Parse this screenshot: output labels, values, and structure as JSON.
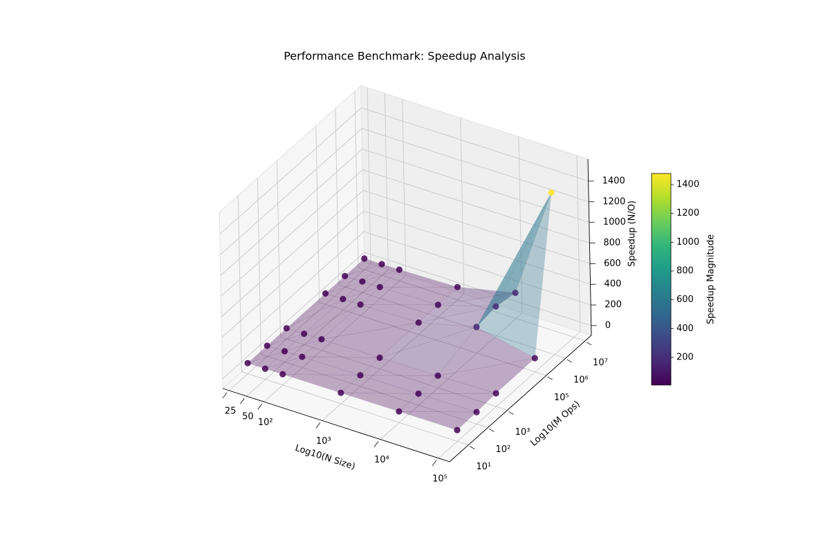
{
  "chart_data": {
    "type": "scatter3d",
    "title": "Performance Benchmark: Speedup Analysis",
    "xlabel": "Log10(N Size)",
    "ylabel": "Log10(M Ops)",
    "zlabel": "Speedup (N/O)",
    "xlog": true,
    "ylog": true,
    "xlim": [
      19.5,
      155000
    ],
    "ylim": [
      1.07,
      21000000
    ],
    "zlim": [
      -94,
      1614
    ],
    "xticks": [
      25,
      50,
      {
        "value": 100,
        "label": "10²"
      },
      {
        "value": 1000,
        "label": "10³"
      },
      {
        "value": 10000,
        "label": "10⁴"
      },
      {
        "value": 100000,
        "label": "10⁵"
      }
    ],
    "yticks": [
      {
        "value": 10,
        "label": "10¹"
      },
      {
        "value": 100,
        "label": "10²"
      },
      {
        "value": 1000,
        "label": "10³"
      },
      {
        "value": 100000,
        "label": "10⁵"
      },
      {
        "value": 1000000,
        "label": "10⁶"
      },
      {
        "value": 10000000,
        "label": "10⁷"
      }
    ],
    "zticks": [
      0,
      200,
      400,
      600,
      800,
      1000,
      1200,
      1400
    ],
    "grid": true,
    "colormap": "viridis",
    "x": [
      25,
      50,
      100,
      1000,
      10000,
      100000,
      25,
      50,
      100,
      1000,
      10000,
      100000,
      25,
      50,
      100,
      1000,
      10000,
      100000,
      25,
      50,
      100,
      1000,
      10000,
      100000,
      25,
      50,
      100,
      1000,
      10000,
      100000,
      25,
      50,
      100,
      1000,
      10000,
      100000
    ],
    "y": [
      10,
      10,
      10,
      10,
      10,
      10,
      100,
      100,
      100,
      100,
      100,
      100,
      1000,
      1000,
      1000,
      1000,
      1000,
      1000,
      100000,
      100000,
      100000,
      100000,
      100000,
      100000,
      1000000,
      1000000,
      1000000,
      1000000,
      1000000,
      1000000,
      10000000,
      10000000,
      10000000,
      10000000,
      10000000,
      10000000
    ],
    "z": [
      8,
      9,
      10,
      12,
      14,
      15,
      9,
      10,
      11,
      14,
      18,
      22,
      10,
      11,
      12,
      16,
      24,
      35,
      11,
      12,
      13,
      20,
      160,
      40,
      12,
      13,
      14,
      24,
      190,
      1477,
      13,
      14,
      15,
      28,
      155,
      null
    ],
    "colorbar": {
      "label": "Speedup Magnitude",
      "lim": [
        8,
        1477
      ],
      "ticks": [
        200,
        400,
        600,
        800,
        1000,
        1200,
        1400
      ]
    }
  }
}
